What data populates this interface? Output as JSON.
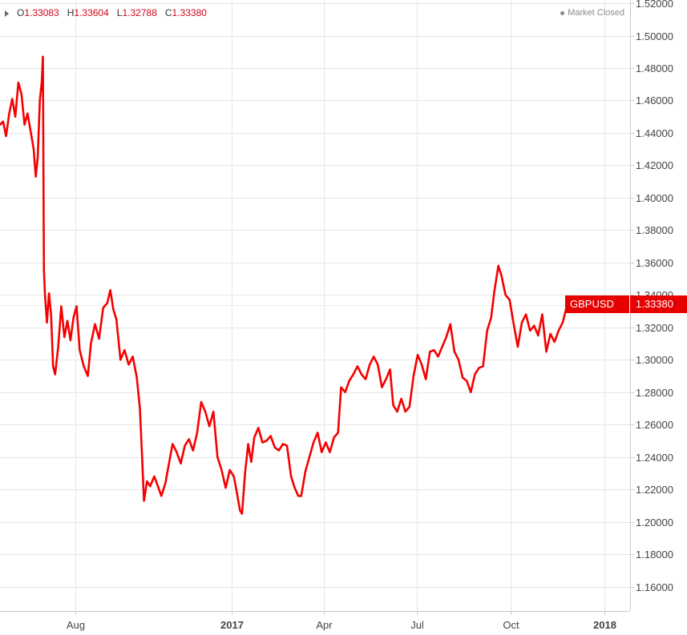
{
  "ohlc": {
    "open_key": "O",
    "open": "1.33083",
    "high_key": "H",
    "high": "1.33604",
    "low_key": "L",
    "low": "1.32788",
    "close_key": "C",
    "close": "1.33380"
  },
  "market_status": "Market Closed",
  "symbol": "GBPUSD",
  "last_price": "1.33380",
  "colors": {
    "line": "#f50000",
    "label_bg": "#e60000",
    "grid": "#e6e6e6"
  },
  "chart_data": {
    "type": "line",
    "title": "",
    "xlabel": "",
    "ylabel": "",
    "ylim": [
      1.145,
      1.522
    ],
    "y_ticks": [
      "1.52000",
      "1.50000",
      "1.48000",
      "1.46000",
      "1.44000",
      "1.42000",
      "1.40000",
      "1.38000",
      "1.36000",
      "1.34000",
      "1.32000",
      "1.30000",
      "1.28000",
      "1.26000",
      "1.24000",
      "1.22000",
      "1.20000",
      "1.18000",
      "1.16000"
    ],
    "x_ticks": [
      {
        "label": "Aug",
        "date": "2016-08-01",
        "bold": false
      },
      {
        "label": "2017",
        "date": "2017-01-01",
        "bold": true
      },
      {
        "label": "Apr",
        "date": "2017-04-01",
        "bold": false
      },
      {
        "label": "Jul",
        "date": "2017-07-01",
        "bold": false
      },
      {
        "label": "Oct",
        "date": "2017-10-01",
        "bold": false
      },
      {
        "label": "2018",
        "date": "2018-01-01",
        "bold": true
      }
    ],
    "x_range": [
      "2016-05-19",
      "2018-01-26"
    ],
    "grid": true,
    "series": [
      {
        "values": [
          [
            "2016-05-19",
            1.445
          ],
          [
            "2016-05-22",
            1.447
          ],
          [
            "2016-05-25",
            1.438
          ],
          [
            "2016-05-28",
            1.452
          ],
          [
            "2016-05-31",
            1.461
          ],
          [
            "2016-06-03",
            1.45
          ],
          [
            "2016-06-06",
            1.471
          ],
          [
            "2016-06-09",
            1.464
          ],
          [
            "2016-06-12",
            1.445
          ],
          [
            "2016-06-15",
            1.452
          ],
          [
            "2016-06-18",
            1.441
          ],
          [
            "2016-06-21",
            1.43
          ],
          [
            "2016-06-23",
            1.413
          ],
          [
            "2016-06-25",
            1.425
          ],
          [
            "2016-06-27",
            1.46
          ],
          [
            "2016-06-29",
            1.472
          ],
          [
            "2016-06-30",
            1.487
          ],
          [
            "2016-07-01",
            1.355
          ],
          [
            "2016-07-02",
            1.34
          ],
          [
            "2016-07-04",
            1.323
          ],
          [
            "2016-07-06",
            1.341
          ],
          [
            "2016-07-08",
            1.328
          ],
          [
            "2016-07-10",
            1.296
          ],
          [
            "2016-07-12",
            1.291
          ],
          [
            "2016-07-15",
            1.308
          ],
          [
            "2016-07-18",
            1.333
          ],
          [
            "2016-07-21",
            1.314
          ],
          [
            "2016-07-24",
            1.324
          ],
          [
            "2016-07-27",
            1.312
          ],
          [
            "2016-07-30",
            1.326
          ],
          [
            "2016-08-02",
            1.333
          ],
          [
            "2016-08-05",
            1.306
          ],
          [
            "2016-08-09",
            1.296
          ],
          [
            "2016-08-13",
            1.29
          ],
          [
            "2016-08-16",
            1.31
          ],
          [
            "2016-08-20",
            1.322
          ],
          [
            "2016-08-24",
            1.313
          ],
          [
            "2016-08-28",
            1.332
          ],
          [
            "2016-09-01",
            1.335
          ],
          [
            "2016-09-04",
            1.343
          ],
          [
            "2016-09-07",
            1.331
          ],
          [
            "2016-09-10",
            1.325
          ],
          [
            "2016-09-14",
            1.3
          ],
          [
            "2016-09-18",
            1.306
          ],
          [
            "2016-09-22",
            1.297
          ],
          [
            "2016-09-26",
            1.302
          ],
          [
            "2016-09-30",
            1.289
          ],
          [
            "2016-10-03",
            1.27
          ],
          [
            "2016-10-05",
            1.242
          ],
          [
            "2016-10-07",
            1.213
          ],
          [
            "2016-10-10",
            1.225
          ],
          [
            "2016-10-13",
            1.222
          ],
          [
            "2016-10-17",
            1.228
          ],
          [
            "2016-10-20",
            1.223
          ],
          [
            "2016-10-24",
            1.216
          ],
          [
            "2016-10-28",
            1.224
          ],
          [
            "2016-11-01",
            1.238
          ],
          [
            "2016-11-04",
            1.248
          ],
          [
            "2016-11-08",
            1.243
          ],
          [
            "2016-11-12",
            1.236
          ],
          [
            "2016-11-16",
            1.247
          ],
          [
            "2016-11-20",
            1.251
          ],
          [
            "2016-11-24",
            1.244
          ],
          [
            "2016-11-28",
            1.255
          ],
          [
            "2016-12-02",
            1.274
          ],
          [
            "2016-12-06",
            1.268
          ],
          [
            "2016-12-10",
            1.259
          ],
          [
            "2016-12-14",
            1.268
          ],
          [
            "2016-12-18",
            1.24
          ],
          [
            "2016-12-22",
            1.232
          ],
          [
            "2016-12-26",
            1.221
          ],
          [
            "2016-12-30",
            1.232
          ],
          [
            "2017-01-03",
            1.228
          ],
          [
            "2017-01-06",
            1.218
          ],
          [
            "2017-01-09",
            1.207
          ],
          [
            "2017-01-11",
            1.205
          ],
          [
            "2017-01-14",
            1.23
          ],
          [
            "2017-01-17",
            1.248
          ],
          [
            "2017-01-20",
            1.237
          ],
          [
            "2017-01-23",
            1.252
          ],
          [
            "2017-01-27",
            1.258
          ],
          [
            "2017-01-31",
            1.249
          ],
          [
            "2017-02-04",
            1.25
          ],
          [
            "2017-02-08",
            1.253
          ],
          [
            "2017-02-12",
            1.246
          ],
          [
            "2017-02-16",
            1.244
          ],
          [
            "2017-02-20",
            1.248
          ],
          [
            "2017-02-24",
            1.247
          ],
          [
            "2017-02-28",
            1.228
          ],
          [
            "2017-03-03",
            1.222
          ],
          [
            "2017-03-07",
            1.216
          ],
          [
            "2017-03-10",
            1.216
          ],
          [
            "2017-03-14",
            1.231
          ],
          [
            "2017-03-18",
            1.24
          ],
          [
            "2017-03-22",
            1.249
          ],
          [
            "2017-03-26",
            1.255
          ],
          [
            "2017-03-30",
            1.243
          ],
          [
            "2017-04-03",
            1.249
          ],
          [
            "2017-04-07",
            1.243
          ],
          [
            "2017-04-11",
            1.252
          ],
          [
            "2017-04-15",
            1.255
          ],
          [
            "2017-04-18",
            1.283
          ],
          [
            "2017-04-22",
            1.28
          ],
          [
            "2017-04-26",
            1.287
          ],
          [
            "2017-04-30",
            1.291
          ],
          [
            "2017-05-04",
            1.296
          ],
          [
            "2017-05-08",
            1.291
          ],
          [
            "2017-05-12",
            1.288
          ],
          [
            "2017-05-16",
            1.297
          ],
          [
            "2017-05-20",
            1.302
          ],
          [
            "2017-05-24",
            1.297
          ],
          [
            "2017-05-28",
            1.283
          ],
          [
            "2017-06-01",
            1.288
          ],
          [
            "2017-06-05",
            1.294
          ],
          [
            "2017-06-08",
            1.272
          ],
          [
            "2017-06-12",
            1.268
          ],
          [
            "2017-06-16",
            1.276
          ],
          [
            "2017-06-20",
            1.268
          ],
          [
            "2017-06-24",
            1.271
          ],
          [
            "2017-06-28",
            1.29
          ],
          [
            "2017-07-02",
            1.303
          ],
          [
            "2017-07-06",
            1.297
          ],
          [
            "2017-07-10",
            1.288
          ],
          [
            "2017-07-14",
            1.305
          ],
          [
            "2017-07-18",
            1.306
          ],
          [
            "2017-07-22",
            1.302
          ],
          [
            "2017-07-26",
            1.308
          ],
          [
            "2017-07-30",
            1.314
          ],
          [
            "2017-08-03",
            1.322
          ],
          [
            "2017-08-07",
            1.305
          ],
          [
            "2017-08-11",
            1.3
          ],
          [
            "2017-08-15",
            1.289
          ],
          [
            "2017-08-19",
            1.287
          ],
          [
            "2017-08-23",
            1.28
          ],
          [
            "2017-08-27",
            1.291
          ],
          [
            "2017-08-31",
            1.295
          ],
          [
            "2017-09-04",
            1.296
          ],
          [
            "2017-09-08",
            1.318
          ],
          [
            "2017-09-12",
            1.326
          ],
          [
            "2017-09-15",
            1.342
          ],
          [
            "2017-09-19",
            1.358
          ],
          [
            "2017-09-22",
            1.352
          ],
          [
            "2017-09-26",
            1.34
          ],
          [
            "2017-09-30",
            1.337
          ],
          [
            "2017-10-04",
            1.322
          ],
          [
            "2017-10-08",
            1.308
          ],
          [
            "2017-10-12",
            1.323
          ],
          [
            "2017-10-16",
            1.328
          ],
          [
            "2017-10-20",
            1.318
          ],
          [
            "2017-10-24",
            1.321
          ],
          [
            "2017-10-28",
            1.315
          ],
          [
            "2017-11-01",
            1.328
          ],
          [
            "2017-11-05",
            1.305
          ],
          [
            "2017-11-09",
            1.316
          ],
          [
            "2017-11-13",
            1.311
          ],
          [
            "2017-11-17",
            1.318
          ],
          [
            "2017-11-21",
            1.323
          ],
          [
            "2017-11-25",
            1.333
          ],
          [
            "2017-11-27",
            1.334
          ]
        ]
      }
    ]
  }
}
